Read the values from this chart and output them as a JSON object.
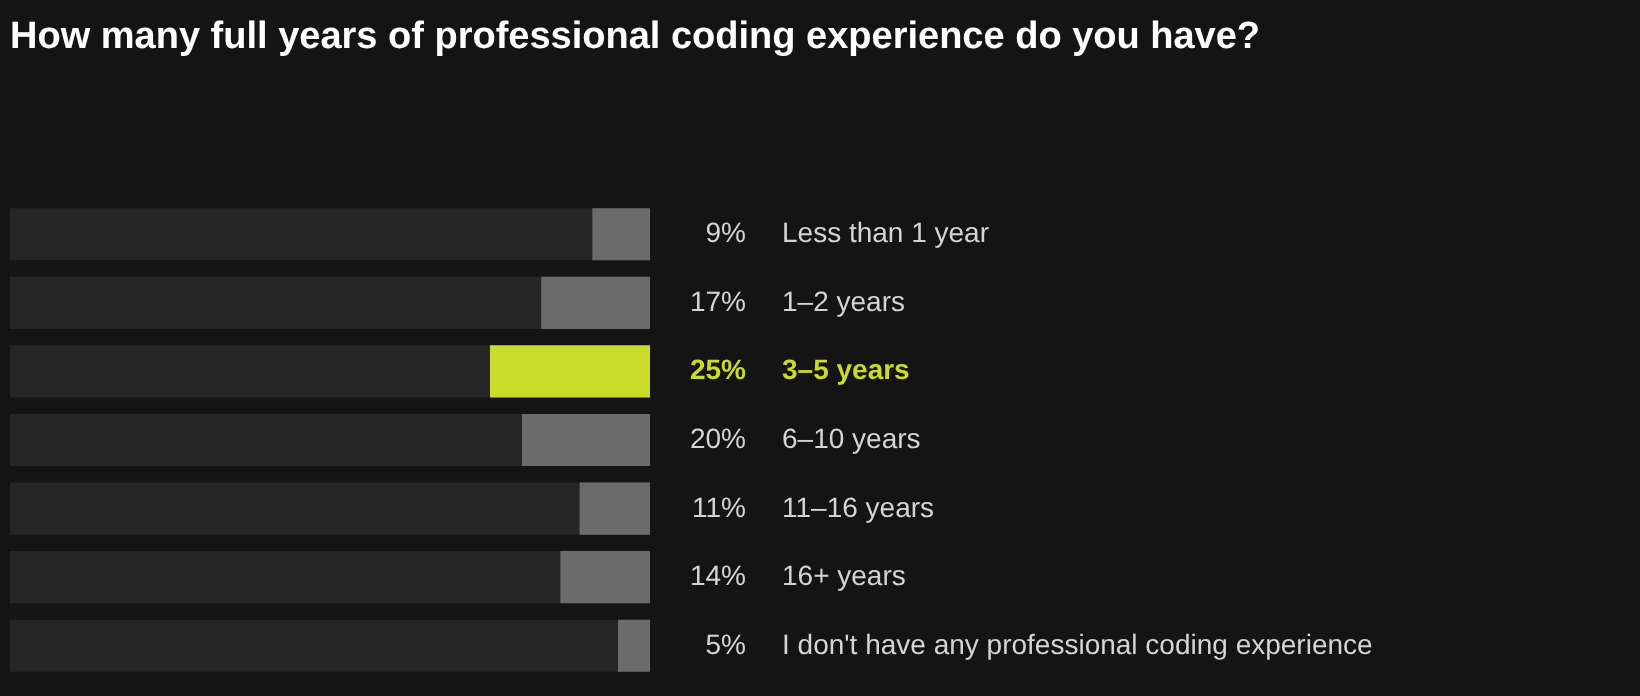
{
  "chart_data": {
    "type": "bar",
    "orientation": "horizontal",
    "title": "How many full years of professional coding experience do you have?",
    "categories": [
      "Less than 1 year",
      "1–2 years",
      "3–5 years",
      "6–10 years",
      "11–16 years",
      "16+ years",
      "I don't have any professional coding experience"
    ],
    "values": [
      9,
      17,
      25,
      20,
      11,
      14,
      5
    ],
    "value_labels": [
      "9%",
      "17%",
      "25%",
      "20%",
      "11%",
      "14%",
      "5%"
    ],
    "colors": [
      "#6b6b6b",
      "#6b6b6b",
      "#c9dc2a",
      "#6b6b6b",
      "#6b6b6b",
      "#6b6b6b",
      "#6b6b6b"
    ],
    "xlim": [
      100,
      0
    ]
  }
}
